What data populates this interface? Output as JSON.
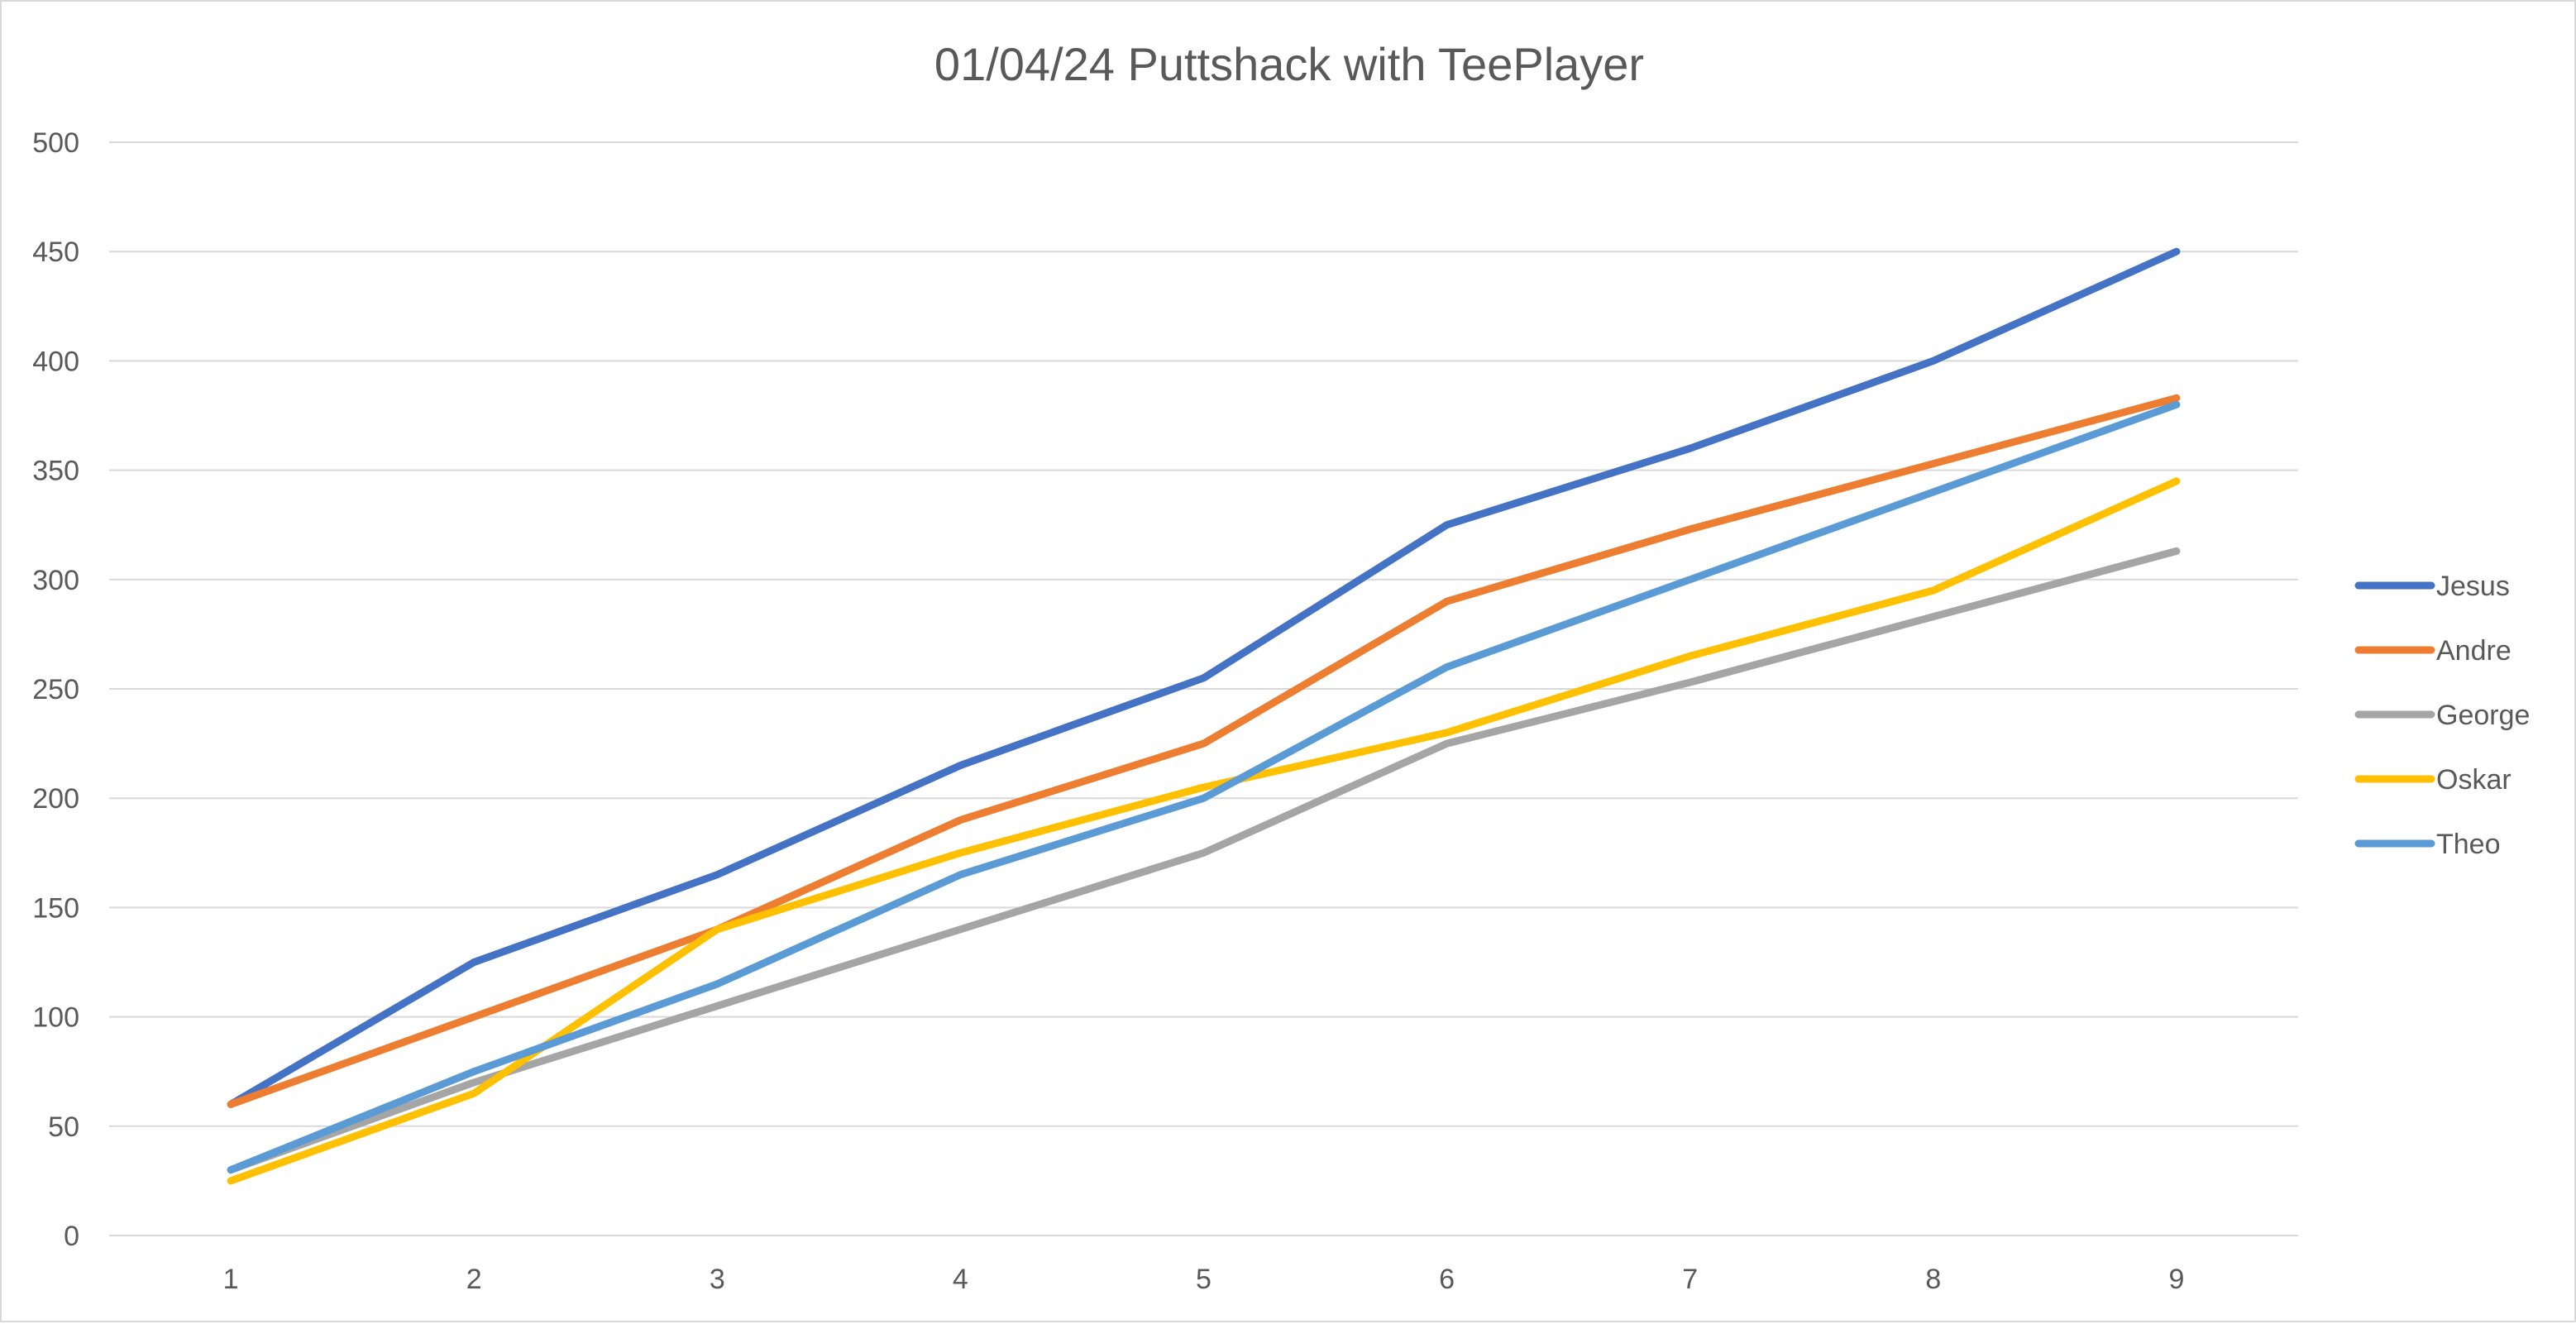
{
  "chart_data": {
    "type": "line",
    "title": "01/04/24 Puttshack with TeePlayer",
    "xlabel": "",
    "ylabel": "",
    "categories": [
      "1",
      "2",
      "3",
      "4",
      "5",
      "6",
      "7",
      "8",
      "9"
    ],
    "ylim": [
      0,
      500
    ],
    "yticks": [
      "0",
      "50",
      "100",
      "150",
      "200",
      "250",
      "300",
      "350",
      "400",
      "450",
      "500"
    ],
    "grid": true,
    "legend_position": "right",
    "series": [
      {
        "name": "Jesus",
        "color": "#4472C4",
        "values": [
          60,
          125,
          165,
          215,
          255,
          325,
          360,
          400,
          450
        ]
      },
      {
        "name": "Andre",
        "color": "#ED7D31",
        "values": [
          60,
          100,
          140,
          190,
          225,
          290,
          323,
          353,
          383
        ]
      },
      {
        "name": "George",
        "color": "#A5A5A5",
        "values": [
          30,
          70,
          105,
          140,
          175,
          225,
          253,
          283,
          313
        ]
      },
      {
        "name": "Oskar",
        "color": "#FFC000",
        "values": [
          25,
          65,
          140,
          175,
          205,
          230,
          265,
          295,
          345
        ]
      },
      {
        "name": "Theo",
        "color": "#5B9BD5",
        "values": [
          30,
          75,
          115,
          165,
          200,
          260,
          300,
          340,
          380
        ]
      }
    ]
  }
}
